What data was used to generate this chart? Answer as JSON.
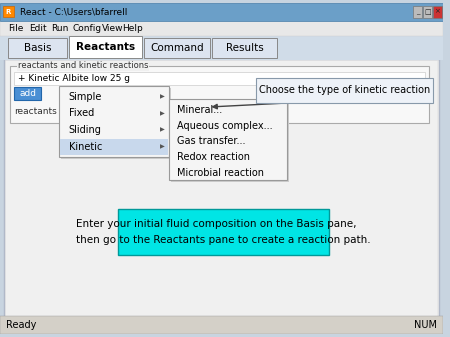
{
  "title_bar": "React - C:\\Users\\bfarrell",
  "bg_color": "#c8d4e0",
  "window_bg": "#e8e8e8",
  "menu_items": [
    "File",
    "Edit",
    "Run",
    "Config",
    "View",
    "Help"
  ],
  "menu_x": [
    8,
    30,
    52,
    74,
    104,
    124
  ],
  "tabs": [
    "Basis",
    "Reactants",
    "Command",
    "Results"
  ],
  "active_tab": "Reactants",
  "section_label": "reactants and kinetic reactions",
  "kinetic_item": "+ Kinetic Albite low 25 g",
  "add_btn": "add",
  "reactants_label": "reactants",
  "context_menu_items": [
    "Simple",
    "Fixed",
    "Sliding",
    "Kinetic"
  ],
  "submenu_items": [
    "Mineral...",
    "Aqueous complex...",
    "Gas transfer...",
    "Redox reaction",
    "Microbial reaction"
  ],
  "callout_text": "Choose the type of kinetic reaction",
  "info_box_text": "Enter your initial fluid composition on the Basis pane,\nthen go to the Reactants pane to create a reaction path.",
  "info_box_bg": "#00e5e5",
  "info_box_border": "#009999",
  "status_bar_left": "Ready",
  "status_bar_right": "NUM",
  "titlebar_bg": "#6b9fc8",
  "title_text_color": "#000000",
  "panel_bg": "#e8e8e8",
  "tab_area_bg": "#d0dce8",
  "tab_active_bg": "#ffffff",
  "tab_inactive_bg": "#d8e0ec",
  "menu_bar_bg": "#e8e8e8",
  "groupbox_bg": "#f0f0f0",
  "context_bg": "#f5f5f5",
  "context_border": "#999999",
  "kinetic_highlight": "#c8d8ec",
  "callout_bg": "#eef2f8",
  "callout_border": "#8899aa"
}
